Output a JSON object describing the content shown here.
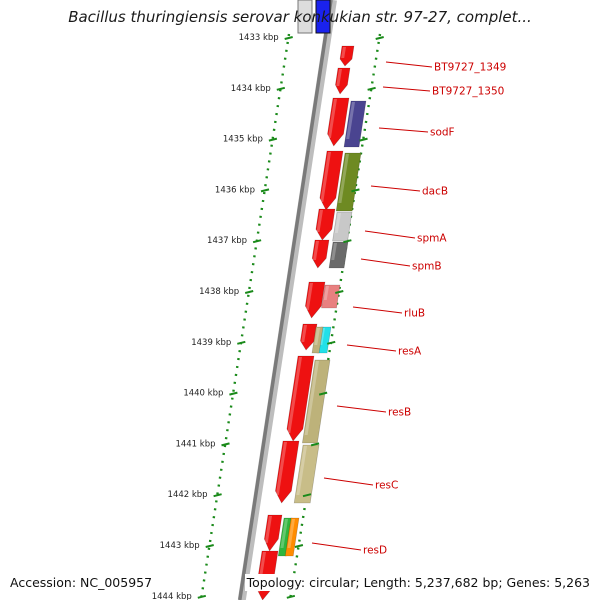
{
  "title": "Bacillus thuringiensis serovar konkukian str. 97-27, complet...",
  "footer": {
    "accession": "Accession: NC_005957",
    "topology": "Topology: circular; Length: 5,237,682 bp; Genes: 5,263"
  },
  "colors": {
    "forward_strand": "#ee1111",
    "dotted_guide": "#1a8a1a",
    "label_line": "#cc0000",
    "backbone": "#888888"
  },
  "ticks": [
    {
      "label": "1433 kbp"
    },
    {
      "label": "1434 kbp"
    },
    {
      "label": "1435 kbp"
    },
    {
      "label": "1436 kbp"
    },
    {
      "label": "1437 kbp"
    },
    {
      "label": "1438 kbp"
    },
    {
      "label": "1439 kbp"
    },
    {
      "label": "1440 kbp"
    },
    {
      "label": "1441 kbp"
    },
    {
      "label": "1442 kbp"
    },
    {
      "label": "1443 kbp"
    },
    {
      "label": "1444 kbp"
    }
  ],
  "genes": [
    {
      "label": "BT9727_1349",
      "color": "#ee1111"
    },
    {
      "label": "BT9727_1350",
      "color": "#ee1111"
    },
    {
      "label": "sodF",
      "color": "#4a4490"
    },
    {
      "label": "dacB",
      "color": "#6e8a22"
    },
    {
      "label": "spmA",
      "color": "#c8c8c8"
    },
    {
      "label": "spmB",
      "color": "#6a6a6a"
    },
    {
      "label": "rluB",
      "color": "#e88080"
    },
    {
      "label": "resA",
      "color": "#22e0e8"
    },
    {
      "label": "resB",
      "color": "#bdb27a"
    },
    {
      "label": "resC",
      "color": "#c8bd88"
    },
    {
      "label": "resD",
      "color": "#2fb53c"
    }
  ]
}
